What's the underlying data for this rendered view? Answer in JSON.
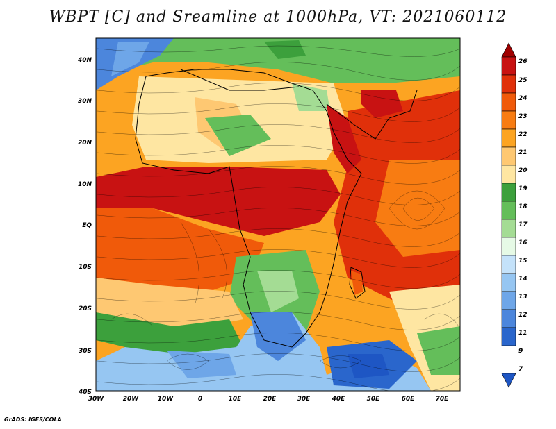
{
  "title": "WBPT [C] and Sreamline at 1000hPa, VT: 2021060112",
  "credit": "GrADS: IGES/COLA",
  "map": {
    "lat_labels": [
      "40N",
      "30N",
      "20N",
      "10N",
      "EQ",
      "10S",
      "20S",
      "30S",
      "40S"
    ],
    "lon_labels": [
      "30W",
      "20W",
      "10W",
      "0",
      "10E",
      "20E",
      "30E",
      "40E",
      "50E",
      "60E",
      "70E"
    ]
  },
  "colorbar": {
    "levels": [
      "26",
      "25",
      "24",
      "23",
      "22",
      "21",
      "20",
      "19",
      "18",
      "17",
      "16",
      "15",
      "14",
      "13",
      "12",
      "11",
      "9",
      "7"
    ],
    "colors": [
      "#c81212",
      "#e0300a",
      "#f05a0a",
      "#f87c12",
      "#fca422",
      "#fec872",
      "#fee6a2",
      "#3ca03c",
      "#64be5a",
      "#a4dc94",
      "#e6fae6",
      "#c4e2fa",
      "#96c6f2",
      "#6ea6e8",
      "#4c86dc",
      "#2a66cc"
    ],
    "top_cap_color": "#a00000",
    "bottom_cap_color": "#1e56c4"
  },
  "legend_sample_colors": {
    "ocean_cool": "#6ea6e8",
    "warm_core": "#c81212",
    "land_green": "#64be5a",
    "yellow": "#fee6a2"
  }
}
